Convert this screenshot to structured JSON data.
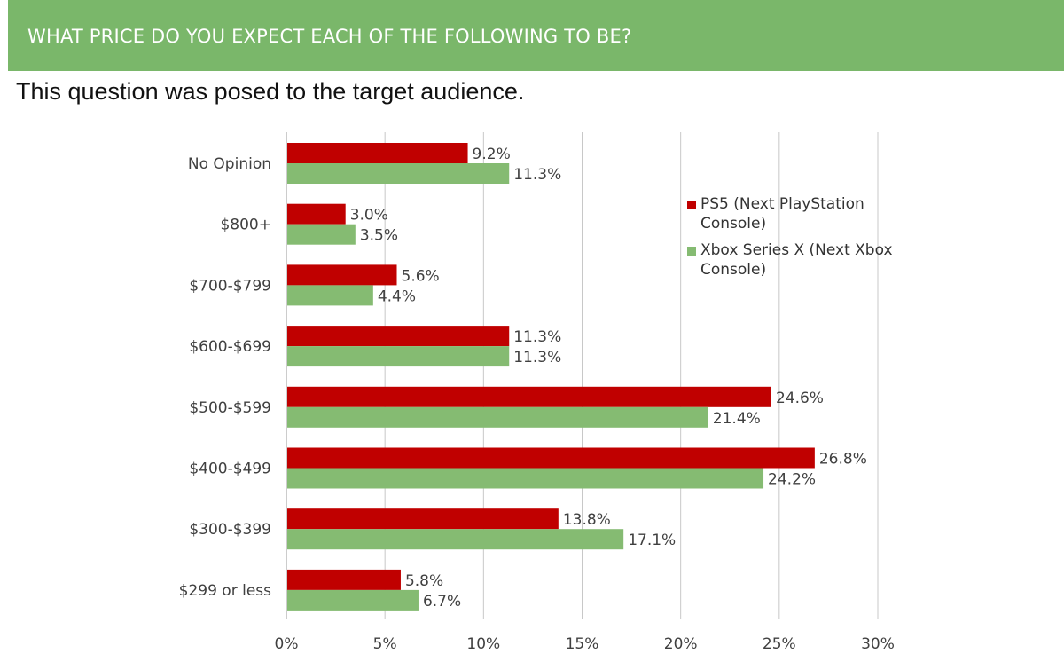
{
  "header": {
    "title": "WHAT PRICE DO YOU EXPECT EACH OF THE FOLLOWING TO BE?",
    "subtitle": "This question was posed to the target audience."
  },
  "colors": {
    "banner": "#7ab76a",
    "ps5": "#c00000",
    "xbox": "#85bb72",
    "gridline": "#c8c8c8",
    "text": "#404040"
  },
  "chart_data": {
    "type": "bar",
    "orientation": "horizontal",
    "categories": [
      "No Opinion",
      "$800+",
      "$700-$799",
      "$600-$699",
      "$500-$599",
      "$400-$499",
      "$300-$399",
      "$299 or less"
    ],
    "series": [
      {
        "name": "PS5 (Next PlayStation Console)",
        "color": "#c00000",
        "values": [
          9.2,
          3.0,
          5.6,
          11.3,
          24.6,
          26.8,
          13.8,
          5.8
        ],
        "labels": [
          "9.2%",
          "3.0%",
          "5.6%",
          "11.3%",
          "24.6%",
          "26.8%",
          "13.8%",
          "5.8%"
        ]
      },
      {
        "name": "Xbox Series X (Next Xbox Console)",
        "color": "#85bb72",
        "values": [
          11.3,
          3.5,
          4.4,
          11.3,
          21.4,
          24.2,
          17.1,
          6.7
        ],
        "labels": [
          "11.3%",
          "3.5%",
          "4.4%",
          "11.3%",
          "21.4%",
          "24.2%",
          "17.1%",
          "6.7%"
        ]
      }
    ],
    "xlim": [
      0,
      30
    ],
    "xticks": [
      0,
      5,
      10,
      15,
      20,
      25,
      30
    ],
    "xtick_labels": [
      "0%",
      "5%",
      "10%",
      "15%",
      "20%",
      "25%",
      "30%"
    ],
    "grid": true,
    "legend_position": "right",
    "legend_lines": [
      [
        "PS5 (Next PlayStation",
        "Console)"
      ],
      [
        "Xbox Series X (Next Xbox",
        "Console)"
      ]
    ]
  }
}
